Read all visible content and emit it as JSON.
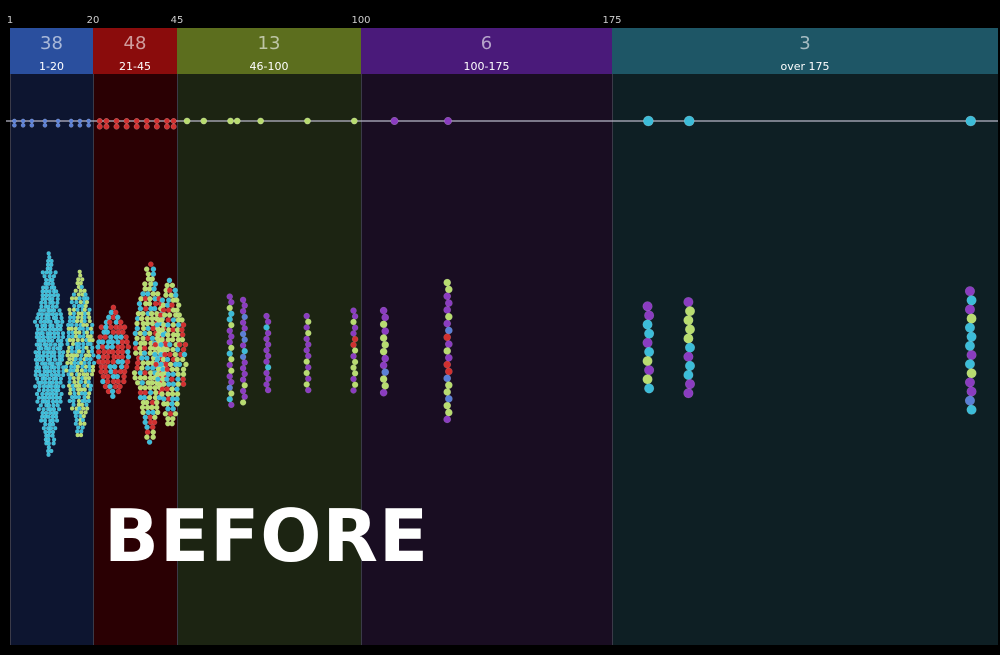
{
  "overlay_text": "BEFORE",
  "chart_data": {
    "type": "scatter",
    "title": "",
    "xlabel": "",
    "ylabel": "",
    "x_scale": "piecewise",
    "x_ticks": [
      "1",
      "20",
      "45",
      "100",
      "175"
    ],
    "grid": false,
    "legend": "none",
    "axis_line_color": "#b8b8c8",
    "bins": [
      {
        "count": "38",
        "range_label": "1-20",
        "from": 1,
        "to": 20,
        "color": "#5a7fd6",
        "header_color": "#2a4f9e",
        "panel_color": "#0d1530"
      },
      {
        "count": "48",
        "range_label": "21-45",
        "from": 20,
        "to": 45,
        "color": "#d03030",
        "header_color": "#8a0c0c",
        "panel_color": "#2a0003"
      },
      {
        "count": "13",
        "range_label": "46-100",
        "from": 45,
        "to": 100,
        "color": "#b8dc70",
        "header_color": "#5c6e1e",
        "panel_color": "#1c2412"
      },
      {
        "count": "6",
        "range_label": "100-175",
        "from": 100,
        "to": 175,
        "color": "#8a3cc0",
        "header_color": "#4a1a7a",
        "panel_color": "#190d22"
      },
      {
        "count": "3",
        "range_label": "over 175",
        "from": 175,
        "to": 260,
        "color": "#3cbcd8",
        "header_color": "#1e5666",
        "panel_color": "#0e1f24"
      }
    ],
    "timeline_points": [
      {
        "x": 2,
        "bin": 0
      },
      {
        "x": 4,
        "bin": 0
      },
      {
        "x": 6,
        "bin": 0
      },
      {
        "x": 9,
        "bin": 0
      },
      {
        "x": 12,
        "bin": 0
      },
      {
        "x": 15,
        "bin": 0
      },
      {
        "x": 17,
        "bin": 0
      },
      {
        "x": 19,
        "bin": 0
      },
      {
        "x": 22,
        "bin": 1
      },
      {
        "x": 24,
        "bin": 1
      },
      {
        "x": 27,
        "bin": 1
      },
      {
        "x": 30,
        "bin": 1
      },
      {
        "x": 33,
        "bin": 1
      },
      {
        "x": 36,
        "bin": 1
      },
      {
        "x": 39,
        "bin": 1
      },
      {
        "x": 42,
        "bin": 1
      },
      {
        "x": 44,
        "bin": 1
      },
      {
        "x": 48,
        "bin": 2
      },
      {
        "x": 53,
        "bin": 2
      },
      {
        "x": 61,
        "bin": 2
      },
      {
        "x": 63,
        "bin": 2
      },
      {
        "x": 70,
        "bin": 2
      },
      {
        "x": 84,
        "bin": 2
      },
      {
        "x": 98,
        "bin": 2
      },
      {
        "x": 110,
        "bin": 3
      },
      {
        "x": 126,
        "bin": 3
      },
      {
        "x": 183,
        "bin": 4
      },
      {
        "x": 192,
        "bin": 4
      },
      {
        "x": 254,
        "bin": 4
      }
    ],
    "distribution_columns": [
      {
        "x": 10,
        "bin": 0,
        "height": 0.95,
        "mix": [
          0,
          0,
          0,
          0,
          1
        ]
      },
      {
        "x": 17,
        "bin": 0,
        "height": 0.78,
        "mix": [
          0,
          0,
          1,
          0,
          1
        ]
      },
      {
        "x": 26,
        "bin": 1,
        "height": 0.45,
        "mix": [
          0,
          2,
          0,
          0,
          1
        ]
      },
      {
        "x": 37,
        "bin": 1,
        "height": 0.85,
        "mix": [
          0,
          1,
          2,
          0,
          1
        ]
      },
      {
        "x": 43,
        "bin": 1,
        "height": 0.7,
        "mix": [
          0,
          1,
          2,
          0,
          1
        ]
      },
      {
        "x": 61,
        "bin": 2,
        "height": 0.55,
        "mix": [
          1,
          0,
          2,
          3,
          1
        ]
      },
      {
        "x": 65,
        "bin": 2,
        "height": 0.52,
        "mix": [
          1,
          0,
          2,
          3,
          1
        ]
      },
      {
        "x": 72,
        "bin": 2,
        "height": 0.37,
        "mix": [
          0,
          0,
          0,
          3,
          1
        ]
      },
      {
        "x": 84,
        "bin": 2,
        "height": 0.37,
        "mix": [
          0,
          0,
          2,
          3,
          0
        ]
      },
      {
        "x": 98,
        "bin": 2,
        "height": 0.42,
        "mix": [
          0,
          1,
          2,
          3,
          0
        ]
      },
      {
        "x": 107,
        "bin": 3,
        "height": 0.42,
        "mix": [
          1,
          0,
          2,
          3,
          0
        ]
      },
      {
        "x": 126,
        "bin": 3,
        "height": 0.68,
        "mix": [
          1,
          2,
          2,
          3,
          0
        ]
      },
      {
        "x": 183,
        "bin": 4,
        "height": 0.46,
        "mix": [
          1,
          0,
          2,
          3,
          4
        ]
      },
      {
        "x": 192,
        "bin": 4,
        "height": 0.5,
        "mix": [
          0,
          0,
          2,
          3,
          2
        ]
      },
      {
        "x": 254,
        "bin": 4,
        "height": 0.6,
        "mix": [
          1,
          0,
          2,
          3,
          4
        ]
      }
    ]
  }
}
